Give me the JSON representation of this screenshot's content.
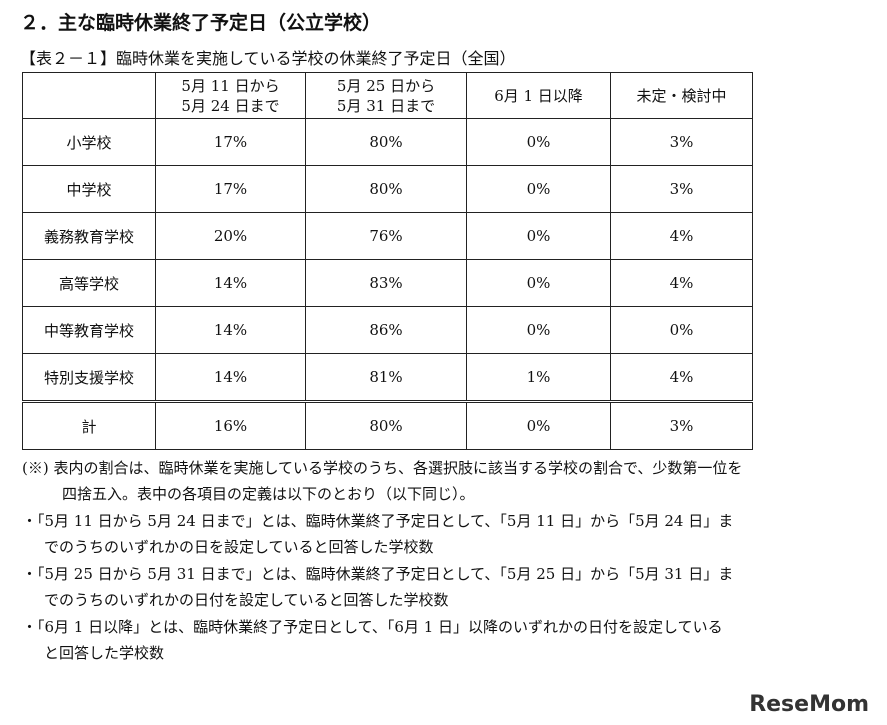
{
  "header": {
    "title": "２．主な臨時休業終了予定日（公立学校）",
    "caption": "【表２－１】臨時休業を実施している学校の休業終了予定日（全国）"
  },
  "table": {
    "columns": [
      "",
      "5月 11 日から\n5月 24 日まで",
      "5月 25 日から\n5月 31 日まで",
      "6月 1 日以降",
      "未定・検討中"
    ],
    "rows": [
      [
        "小学校",
        "17%",
        "80%",
        "0%",
        "3%"
      ],
      [
        "中学校",
        "17%",
        "80%",
        "0%",
        "3%"
      ],
      [
        "義務教育学校",
        "20%",
        "76%",
        "0%",
        "4%"
      ],
      [
        "高等学校",
        "14%",
        "83%",
        "0%",
        "4%"
      ],
      [
        "中等教育学校",
        "14%",
        "86%",
        "0%",
        "0%"
      ],
      [
        "特別支援学校",
        "14%",
        "81%",
        "1%",
        "4%"
      ],
      [
        "計",
        "16%",
        "80%",
        "0%",
        "3%"
      ]
    ]
  },
  "notes": [
    {
      "lines": [
        "(※) 表内の割合は、臨時休業を実施している学校のうち、各選択肢に該当する学校の割合で、少数第一位を",
        "四捨五入。表中の各項目の定義は以下のとおり（以下同じ）。"
      ]
    },
    {
      "lines": [
        "・「5月 11 日から 5月 24 日まで」とは、臨時休業終了予定日として、「5月 11 日」から「5月 24 日」ま",
        "でのうちのいずれかの日を設定していると回答した学校数"
      ]
    },
    {
      "lines": [
        "・「5月 25 日から 5月 31 日まで」とは、臨時休業終了予定日として、「5月 25 日」から「5月 31 日」ま",
        "でのうちのいずれかの日付を設定していると回答した学校数"
      ]
    },
    {
      "lines": [
        "・「6月 1 日以降」とは、臨時休業終了予定日として、「6月 1 日」以降のいずれかの日付を設定している",
        "と回答した学校数"
      ]
    }
  ],
  "watermark": "ReseMom"
}
